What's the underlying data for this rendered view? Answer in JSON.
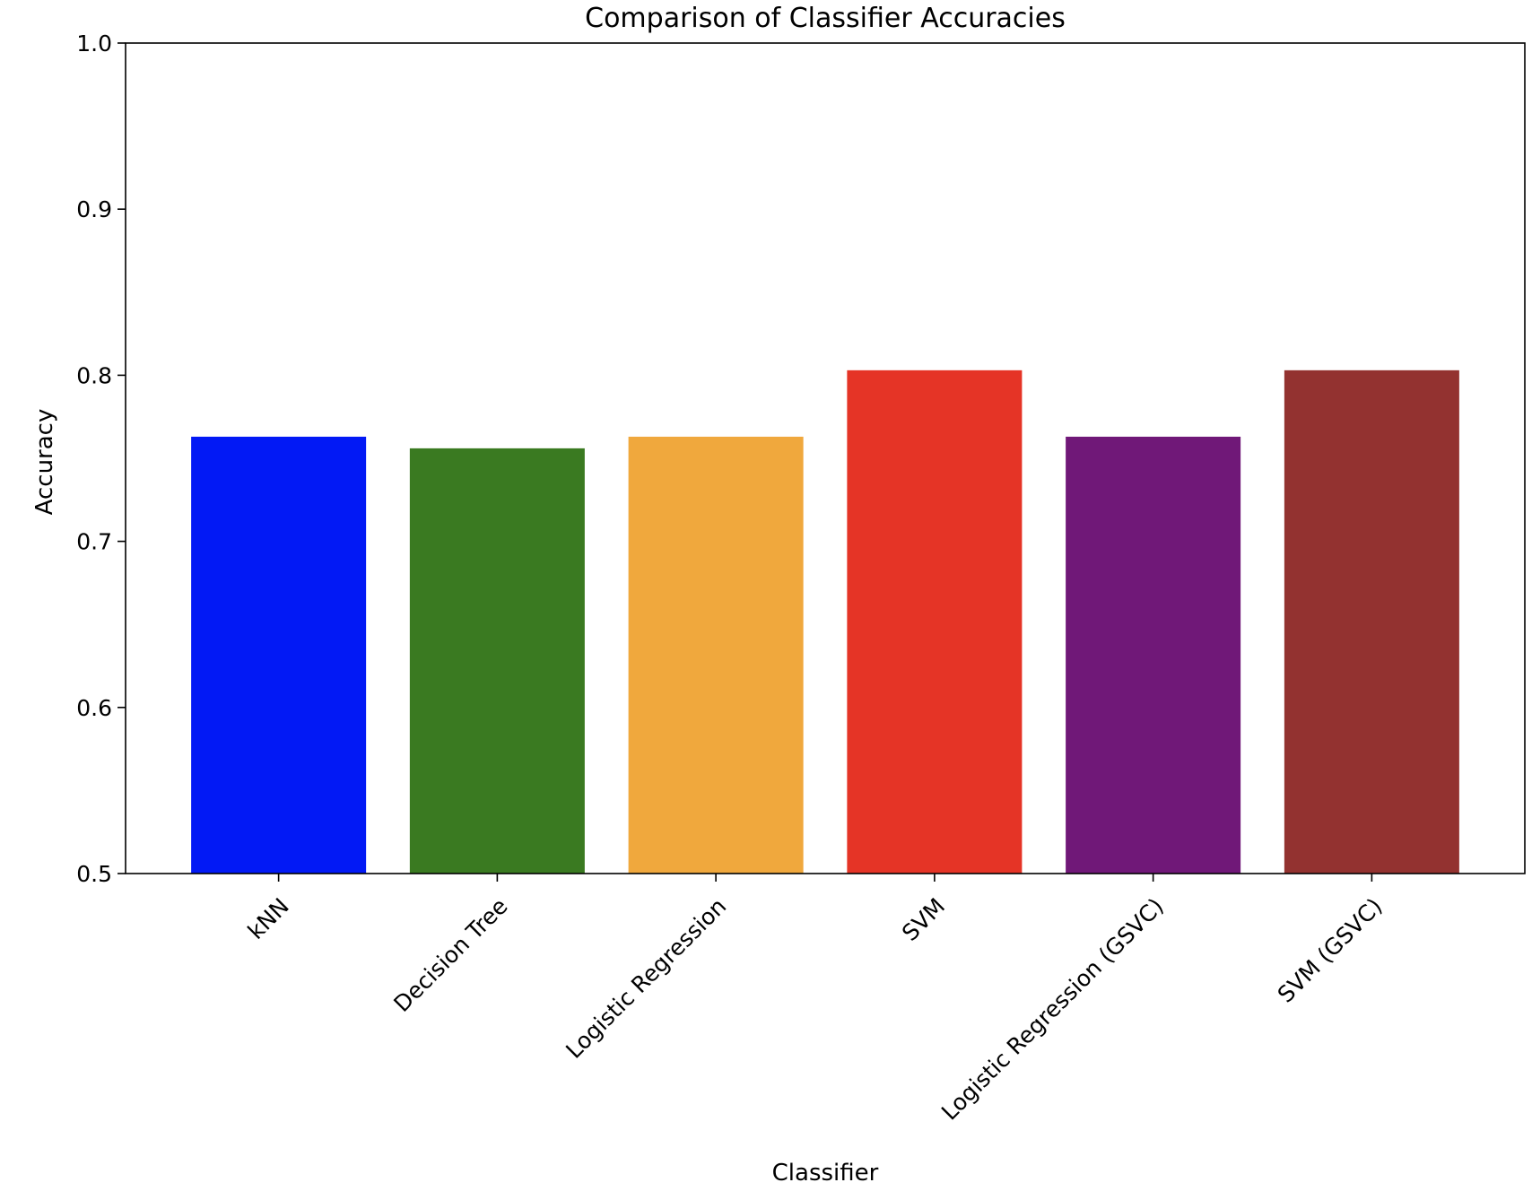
{
  "chart_data": {
    "type": "bar",
    "title": "Comparison of Classifier Accuracies",
    "xlabel": "Classifier",
    "ylabel": "Accuracy",
    "categories": [
      "kNN",
      "Decision Tree",
      "Logistic Regression",
      "SVM",
      "Logistic Regression (GSVC)",
      "SVM (GSVC)"
    ],
    "values": [
      0.763,
      0.756,
      0.763,
      0.803,
      0.763,
      0.803
    ],
    "colors": [
      "#0219f5",
      "#3a7a21",
      "#f0a83d",
      "#e53426",
      "#701878",
      "#933230"
    ],
    "ylim": [
      0.5,
      1.0
    ],
    "yticks": [
      0.5,
      0.6,
      0.7,
      0.8,
      0.9,
      1.0
    ],
    "ytick_labels": [
      "0.5",
      "0.6",
      "0.7",
      "0.8",
      "0.9",
      "1.0"
    ],
    "grid": false,
    "legend": "none"
  }
}
